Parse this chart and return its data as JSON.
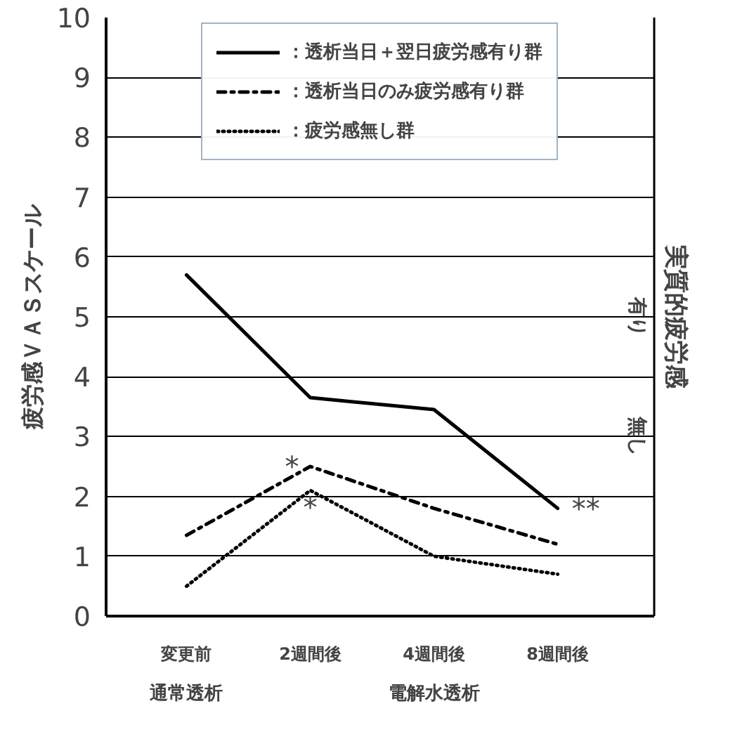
{
  "chart_data": {
    "type": "line",
    "ylabel": "疲労感ＶＡＳスケール",
    "y2label": "実質的疲労感",
    "categories": [
      "変更前",
      "2週間後",
      "4週間後",
      "8週間後"
    ],
    "series": [
      {
        "name": "：透析当日＋翌日疲労感有り群",
        "color": "#000000",
        "line_style": "solid",
        "values": [
          5.7,
          3.65,
          3.45,
          1.8
        ]
      },
      {
        "name": "：透析当日のみ疲労感有り群",
        "color": "#000000",
        "line_style": "dashdot",
        "values": [
          1.35,
          2.5,
          1.8,
          1.2
        ]
      },
      {
        "name": "：疲労感無し群",
        "color": "#000000",
        "line_style": "dotted",
        "values": [
          0.5,
          2.1,
          1.0,
          0.7
        ]
      }
    ],
    "ylim": [
      0,
      10
    ],
    "yticks": [
      0,
      1,
      2,
      3,
      4,
      5,
      6,
      7,
      8,
      9,
      10
    ],
    "grid": "y",
    "legend": "top",
    "marker": "none",
    "annotations": [
      {
        "text": "*",
        "x": "2週間後",
        "y": 2.5
      },
      {
        "text": "*",
        "x": "2週間後",
        "y": 2.1
      },
      {
        "text": "**",
        "x": "8週間後",
        "y": 1.8
      },
      "有り",
      "無し",
      "通常透析",
      "電解水透析"
    ]
  }
}
